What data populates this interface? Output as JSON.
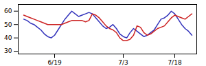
{
  "chart_data": {
    "type": "line",
    "categories": [
      null,
      null,
      null,
      null,
      null,
      null,
      null,
      null,
      null,
      "6/19",
      null,
      null,
      null,
      null,
      null,
      null,
      null,
      null,
      null,
      null,
      null,
      null,
      null,
      null,
      null,
      null,
      null,
      null,
      null,
      "7/3",
      null,
      null,
      null,
      null,
      null,
      null,
      null,
      null,
      null,
      null,
      null,
      null,
      null,
      null,
      "7/18",
      null,
      null,
      null,
      null,
      null
    ],
    "series": [
      {
        "color": "#3333bb",
        "values": [
          54,
          53,
          51,
          50,
          48,
          46,
          43,
          41,
          40,
          42,
          46,
          50,
          54,
          57,
          60,
          58,
          56,
          57,
          58,
          59,
          58,
          55,
          52,
          49,
          47,
          48,
          50,
          47,
          43,
          41,
          40,
          44,
          47,
          45,
          43,
          41,
          42,
          44,
          46,
          50,
          54,
          55,
          57,
          60,
          58,
          54,
          50,
          47,
          45,
          42
        ]
      },
      {
        "color": "#cc2222",
        "values": [
          57,
          56,
          55,
          54,
          53,
          52,
          51,
          50,
          50,
          50,
          50,
          50,
          51,
          52,
          53,
          53,
          53,
          53,
          52,
          53,
          58,
          57,
          55,
          52,
          49,
          47,
          46,
          44,
          40,
          38,
          38,
          39,
          42,
          49,
          48,
          44,
          42,
          43,
          45,
          47,
          48,
          49,
          52,
          55,
          57,
          56,
          55,
          54,
          56,
          58
        ]
      }
    ],
    "ylim": [
      28,
      65
    ],
    "yticks": [
      30,
      40,
      50,
      60
    ]
  }
}
